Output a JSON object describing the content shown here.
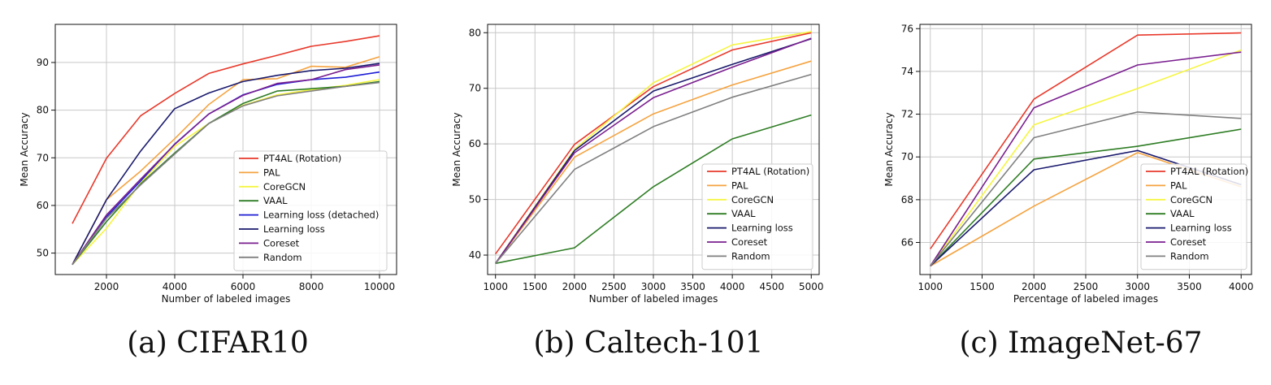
{
  "captions": [
    "(a) CIFAR10",
    "(b) Caltech-101",
    "(c) ImageNet-67"
  ],
  "chart_data": [
    {
      "type": "line",
      "xlabel": "Number of labeled images",
      "ylabel": "Mean Accuracy",
      "xlim": [
        500,
        10500
      ],
      "ylim": [
        45.5,
        98
      ],
      "xticks": [
        2000,
        4000,
        6000,
        8000,
        10000
      ],
      "yticks": [
        50,
        60,
        70,
        80,
        90
      ],
      "grid": true,
      "legend_position": "lower-right",
      "x": [
        1000,
        2000,
        3000,
        4000,
        5000,
        6000,
        7000,
        8000,
        9000,
        10000
      ],
      "series": [
        {
          "name": "PT4AL (Rotation)",
          "color": "#e8392b",
          "values": [
            56.2,
            69.9,
            78.8,
            83.5,
            87.7,
            89.7,
            91.5,
            93.4,
            94.4,
            95.6
          ]
        },
        {
          "name": "PAL",
          "color": "#f5a340",
          "values": [
            47.6,
            61.2,
            67.2,
            74.0,
            81.2,
            86.4,
            86.6,
            89.2,
            89.0,
            91.2
          ]
        },
        {
          "name": "CoreGCN",
          "color": "#f6f542",
          "values": [
            47.6,
            55.2,
            64.7,
            72.4,
            77.2,
            81.0,
            83.2,
            84.3,
            85.2,
            86.4
          ]
        },
        {
          "name": "VAAL",
          "color": "#2e7d24",
          "values": [
            47.6,
            56.6,
            64.5,
            71.0,
            77.2,
            81.4,
            84.0,
            84.5,
            85.0,
            86.0
          ]
        },
        {
          "name": "Learning loss (detached)",
          "color": "#1f1fd6",
          "values": [
            47.6,
            57.6,
            65.1,
            72.9,
            79.2,
            83.2,
            85.4,
            86.4,
            86.9,
            88.0
          ]
        },
        {
          "name": "Learning loss",
          "color": "#1a1a6e",
          "values": [
            47.6,
            61.2,
            71.4,
            80.3,
            83.6,
            86.0,
            87.3,
            88.3,
            88.8,
            89.8
          ]
        },
        {
          "name": "Coreset",
          "color": "#7a1f8f",
          "values": [
            47.6,
            58.0,
            65.5,
            72.8,
            79.2,
            83.1,
            85.6,
            86.4,
            88.5,
            89.5
          ]
        },
        {
          "name": "Random",
          "color": "#808080",
          "values": [
            47.6,
            57.3,
            64.3,
            70.8,
            77.2,
            80.9,
            83.0,
            84.0,
            85.0,
            85.8
          ]
        }
      ]
    },
    {
      "type": "line",
      "xlabel": "Number of labeled images",
      "ylabel": "Mean Accuracy",
      "xlim": [
        900,
        5100
      ],
      "ylim": [
        36.5,
        81.5
      ],
      "xticks": [
        1000,
        1500,
        2000,
        2500,
        3000,
        3500,
        4000,
        4500,
        5000
      ],
      "yticks": [
        40,
        50,
        60,
        70,
        80
      ],
      "grid": true,
      "legend_position": "lower-right",
      "x": [
        1000,
        2000,
        3000,
        4000,
        5000
      ],
      "series": [
        {
          "name": "PT4AL (Rotation)",
          "color": "#e8392b",
          "values": [
            40.2,
            59.9,
            70.3,
            76.9,
            80.0
          ]
        },
        {
          "name": "PAL",
          "color": "#f5a340",
          "values": [
            38.5,
            57.6,
            65.4,
            70.6,
            74.9
          ]
        },
        {
          "name": "CoreGCN",
          "color": "#f6f542",
          "values": [
            38.5,
            59.0,
            71.0,
            77.8,
            80.2
          ]
        },
        {
          "name": "VAAL",
          "color": "#2e7d24",
          "values": [
            38.5,
            41.3,
            52.3,
            60.9,
            65.2
          ]
        },
        {
          "name": "Learning loss",
          "color": "#1a1a6e",
          "values": [
            38.5,
            58.8,
            69.5,
            74.3,
            78.9
          ]
        },
        {
          "name": "Coreset",
          "color": "#7a1f8f",
          "values": [
            38.5,
            58.4,
            68.3,
            73.8,
            79.0
          ]
        },
        {
          "name": "Random",
          "color": "#808080",
          "values": [
            38.5,
            55.4,
            63.1,
            68.4,
            72.5
          ]
        }
      ]
    },
    {
      "type": "line",
      "xlabel": "Percentage of labeled images",
      "ylabel": "Mean Accuracy",
      "xlim": [
        900,
        4100
      ],
      "ylim": [
        64.5,
        76.2
      ],
      "xticks": [
        1000,
        1500,
        2000,
        2500,
        3000,
        3500,
        4000
      ],
      "yticks": [
        66,
        68,
        70,
        72,
        74,
        76
      ],
      "grid": true,
      "legend_position": "lower-right",
      "x": [
        1000,
        2000,
        3000,
        4000
      ],
      "series": [
        {
          "name": "PT4AL (Rotation)",
          "color": "#e8392b",
          "values": [
            65.7,
            72.7,
            75.7,
            75.8
          ]
        },
        {
          "name": "PAL",
          "color": "#f5a340",
          "values": [
            64.9,
            67.7,
            70.2,
            68.6
          ]
        },
        {
          "name": "CoreGCN",
          "color": "#f6f542",
          "values": [
            64.9,
            71.5,
            73.2,
            75.0
          ]
        },
        {
          "name": "VAAL",
          "color": "#2e7d24",
          "values": [
            64.9,
            69.9,
            70.5,
            71.3
          ]
        },
        {
          "name": "Learning loss",
          "color": "#1a1a6e",
          "values": [
            64.9,
            69.4,
            70.3,
            68.7
          ]
        },
        {
          "name": "Coreset",
          "color": "#7a1f8f",
          "values": [
            64.9,
            72.3,
            74.3,
            74.9
          ]
        },
        {
          "name": "Random",
          "color": "#808080",
          "values": [
            64.9,
            70.9,
            72.1,
            71.8
          ]
        }
      ]
    }
  ]
}
